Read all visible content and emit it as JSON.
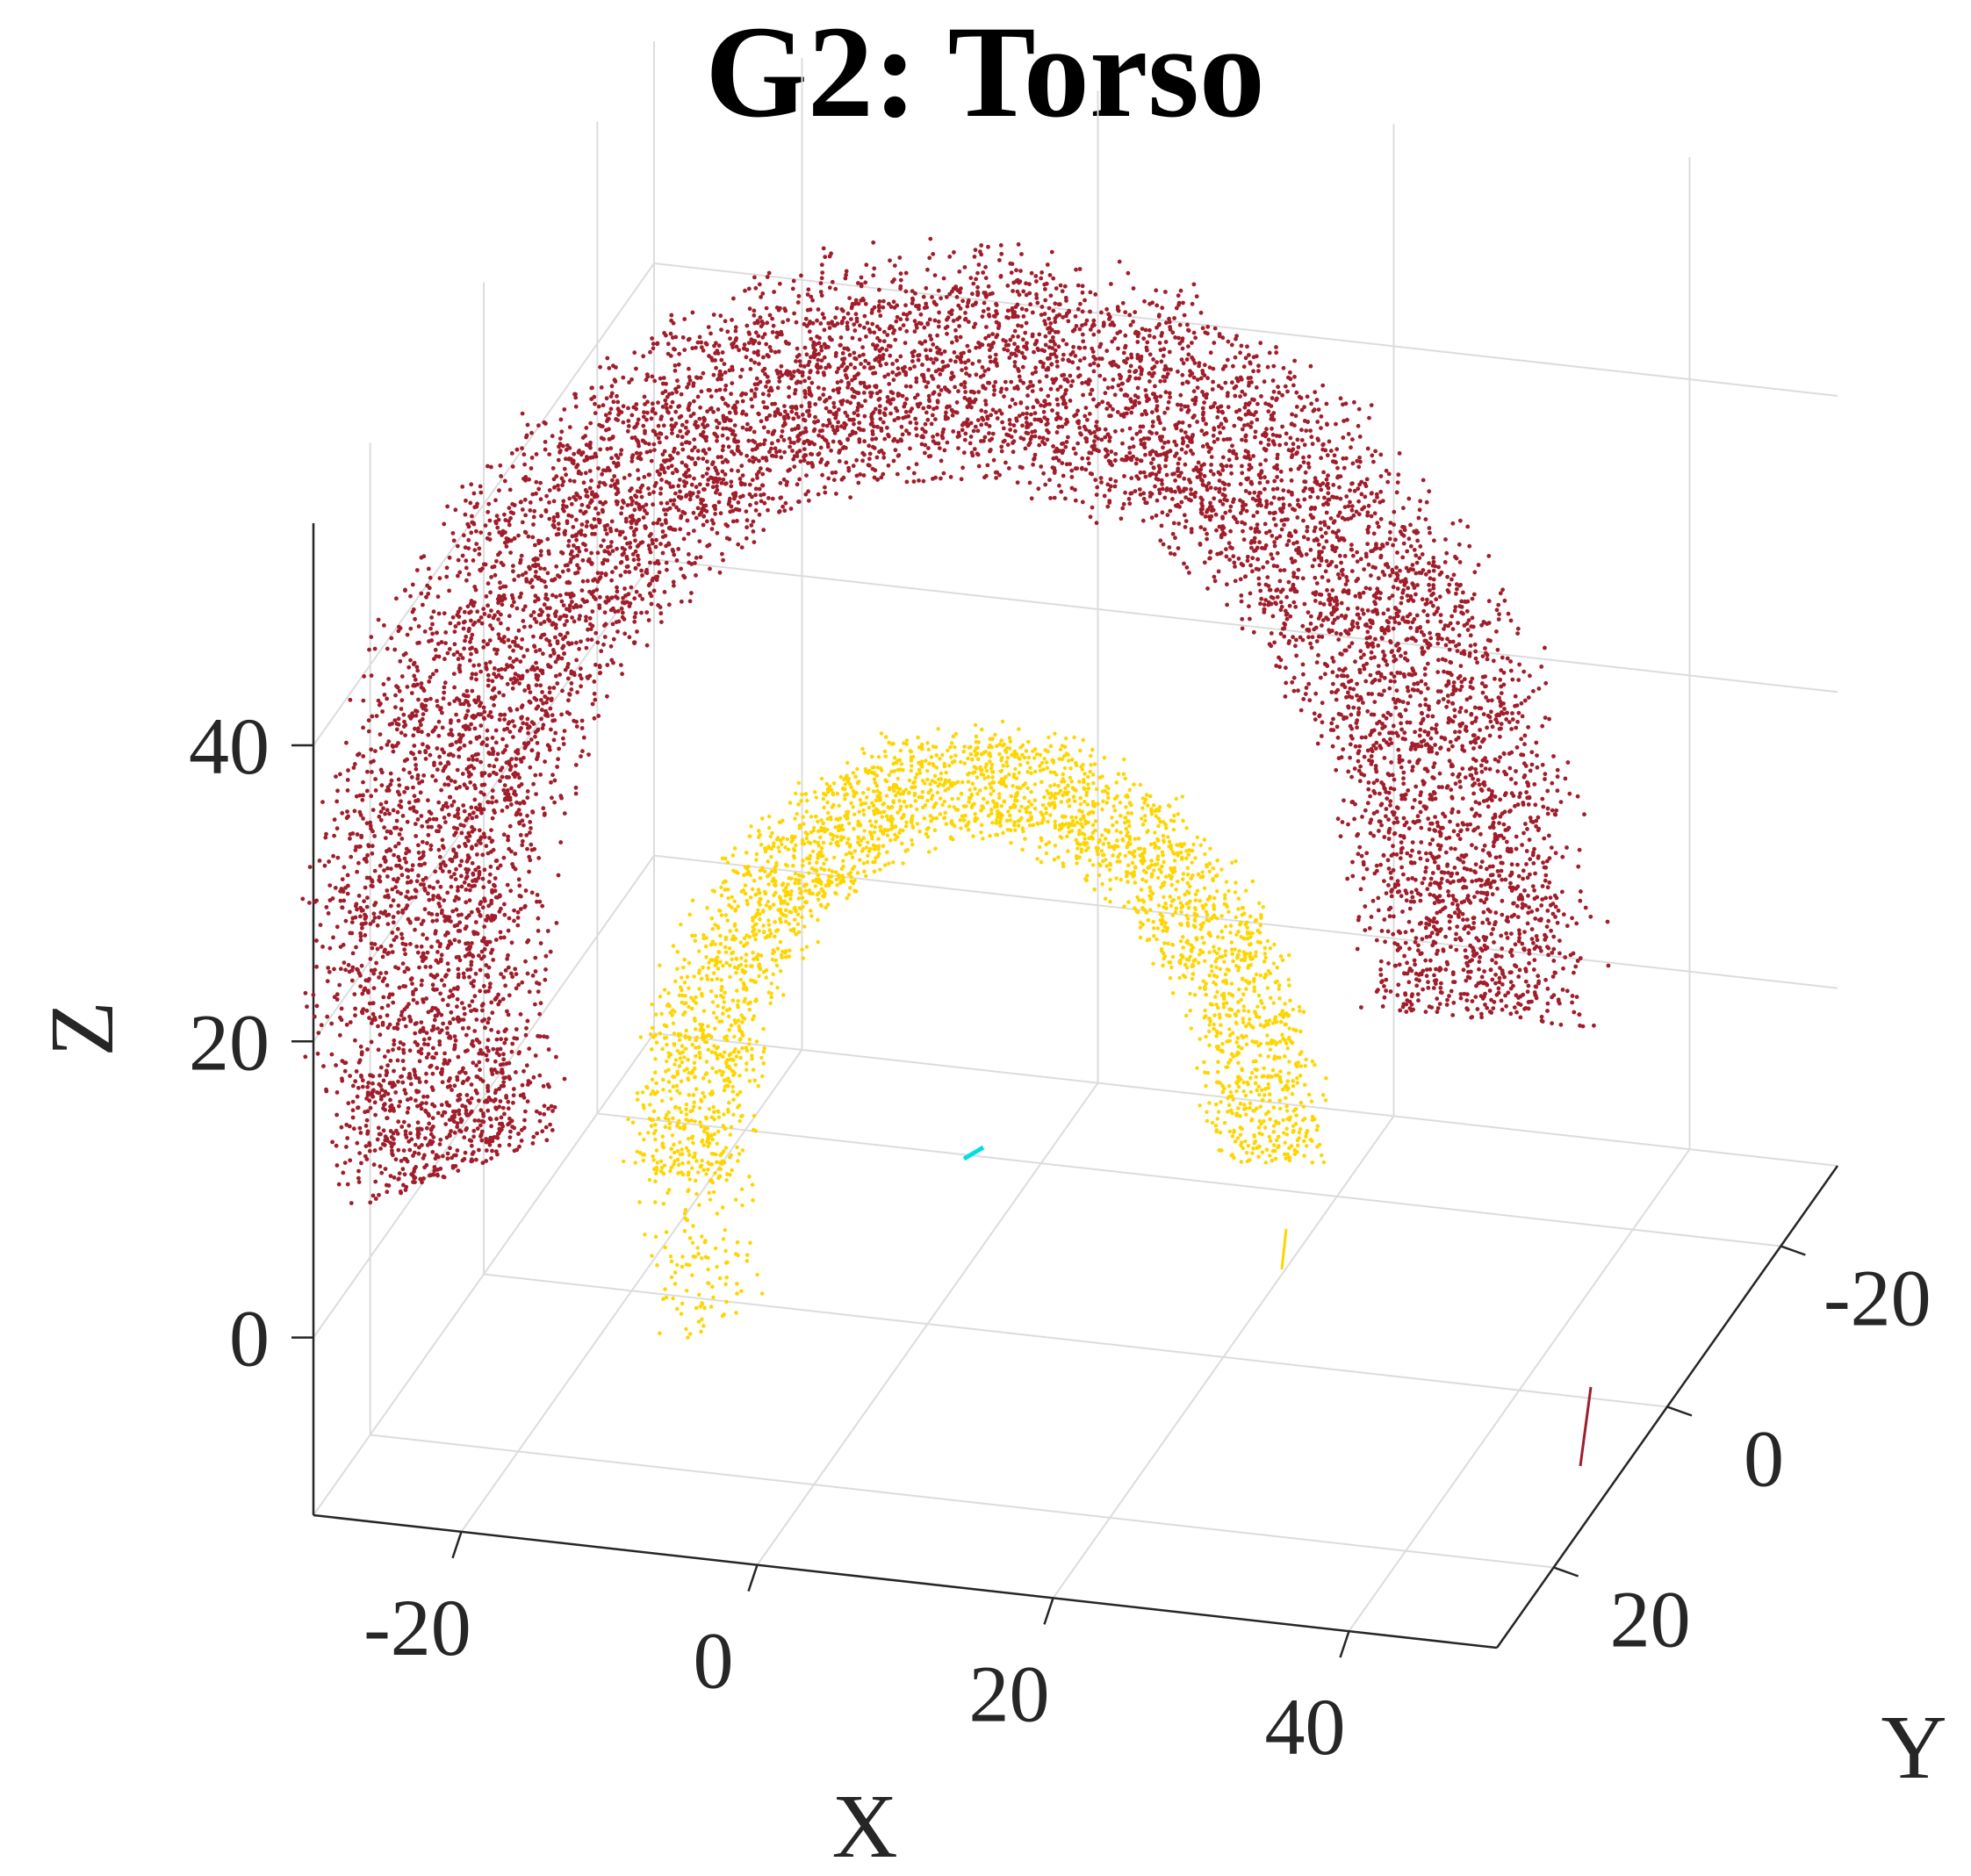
{
  "chart_data": {
    "type": "scatter",
    "title": "G2: Torso",
    "xlabel": "X",
    "ylabel": "Y",
    "zlabel": "Z",
    "xlim": [
      -30,
      50
    ],
    "ylim": [
      -30,
      30
    ],
    "zlim": [
      -12,
      55
    ],
    "xticks": [
      "-20",
      "0",
      "20",
      "40"
    ],
    "yticks": [
      "-20",
      "0",
      "20"
    ],
    "zticks": [
      "0",
      "20",
      "40"
    ],
    "grid": true,
    "view": "3d",
    "series": [
      {
        "color": "#a01e2c",
        "shape": "large arc cloud",
        "x_range": [
          -28,
          48
        ],
        "y_range": [
          -10,
          25
        ],
        "z_range": [
          5,
          55
        ]
      },
      {
        "color": "#ffd500",
        "shape": "small arc cloud",
        "x_range": [
          -5,
          30
        ],
        "y_range": [
          -8,
          10
        ],
        "z_range": [
          10,
          42
        ]
      },
      {
        "color": "#00e0e0",
        "shape": "short segment",
        "x_range": [
          4,
          6
        ],
        "y_range": [
          -3,
          -2
        ],
        "z_range": [
          3,
          5
        ]
      }
    ]
  }
}
